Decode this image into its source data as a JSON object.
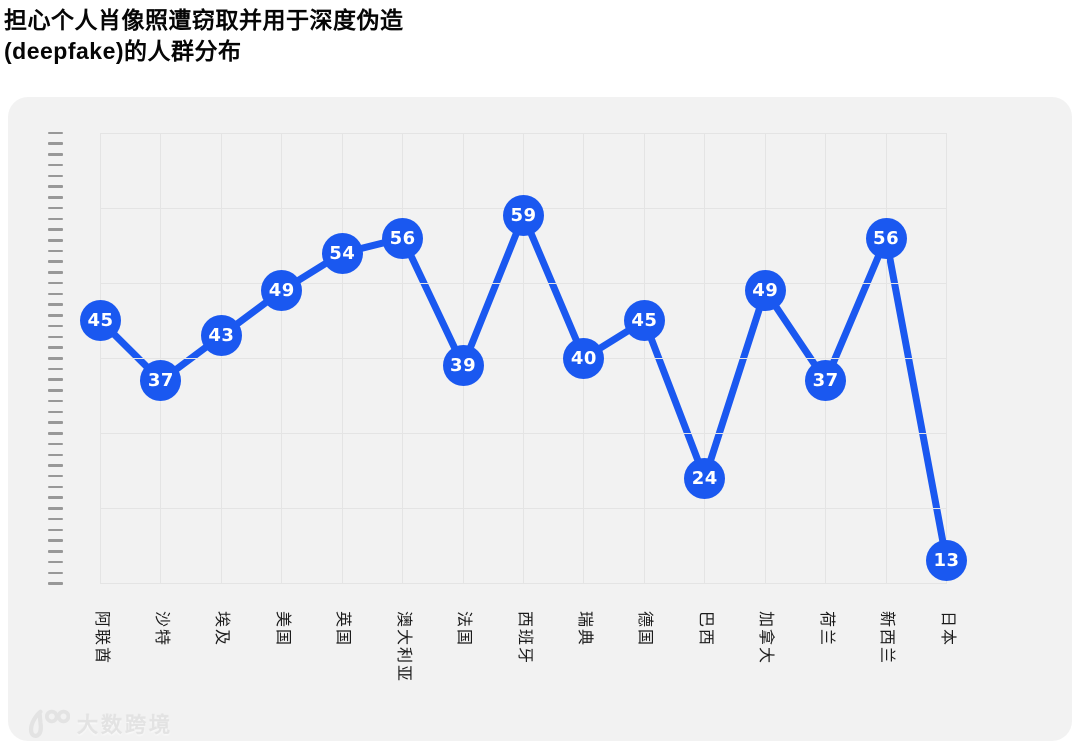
{
  "title": {
    "line1": "担心个人肖像照遭窃取并用于深度伪造",
    "line2": "(deepfake)的人群分布"
  },
  "watermark": {
    "text": "大数跨境",
    "logo": "100-logo"
  },
  "colors": {
    "accent_blue": "#1a58f0",
    "card_bg": "#f2f2f2",
    "grid_line": "#e4e4e4",
    "axis_tick": "#989898",
    "bubble_text": "#ffffff",
    "title_text": "#060606",
    "x_label_text": "#1c1c1c",
    "watermark_text": "#e3e3e3"
  },
  "chart_data": {
    "type": "line",
    "title": "担心个人肖像照遭窃取并用于深度伪造(deepfake)的人群分布",
    "categories": [
      "阿联酋",
      "沙特",
      "埃及",
      "美国",
      "英国",
      "澳大利亚",
      "法国",
      "西班牙",
      "瑞典",
      "德国",
      "巴西",
      "加拿大",
      "荷兰",
      "新西兰",
      "日本"
    ],
    "values": [
      45,
      37,
      43,
      49,
      54,
      56,
      39,
      59,
      40,
      45,
      24,
      49,
      37,
      56,
      13
    ],
    "xlabel": "",
    "ylabel": "",
    "ylim": [
      10,
      70
    ],
    "y_grid_step": 10,
    "grid": true,
    "legend": false,
    "point_labels": "value shown inside circular marker",
    "x_tick_rotation": 90
  }
}
